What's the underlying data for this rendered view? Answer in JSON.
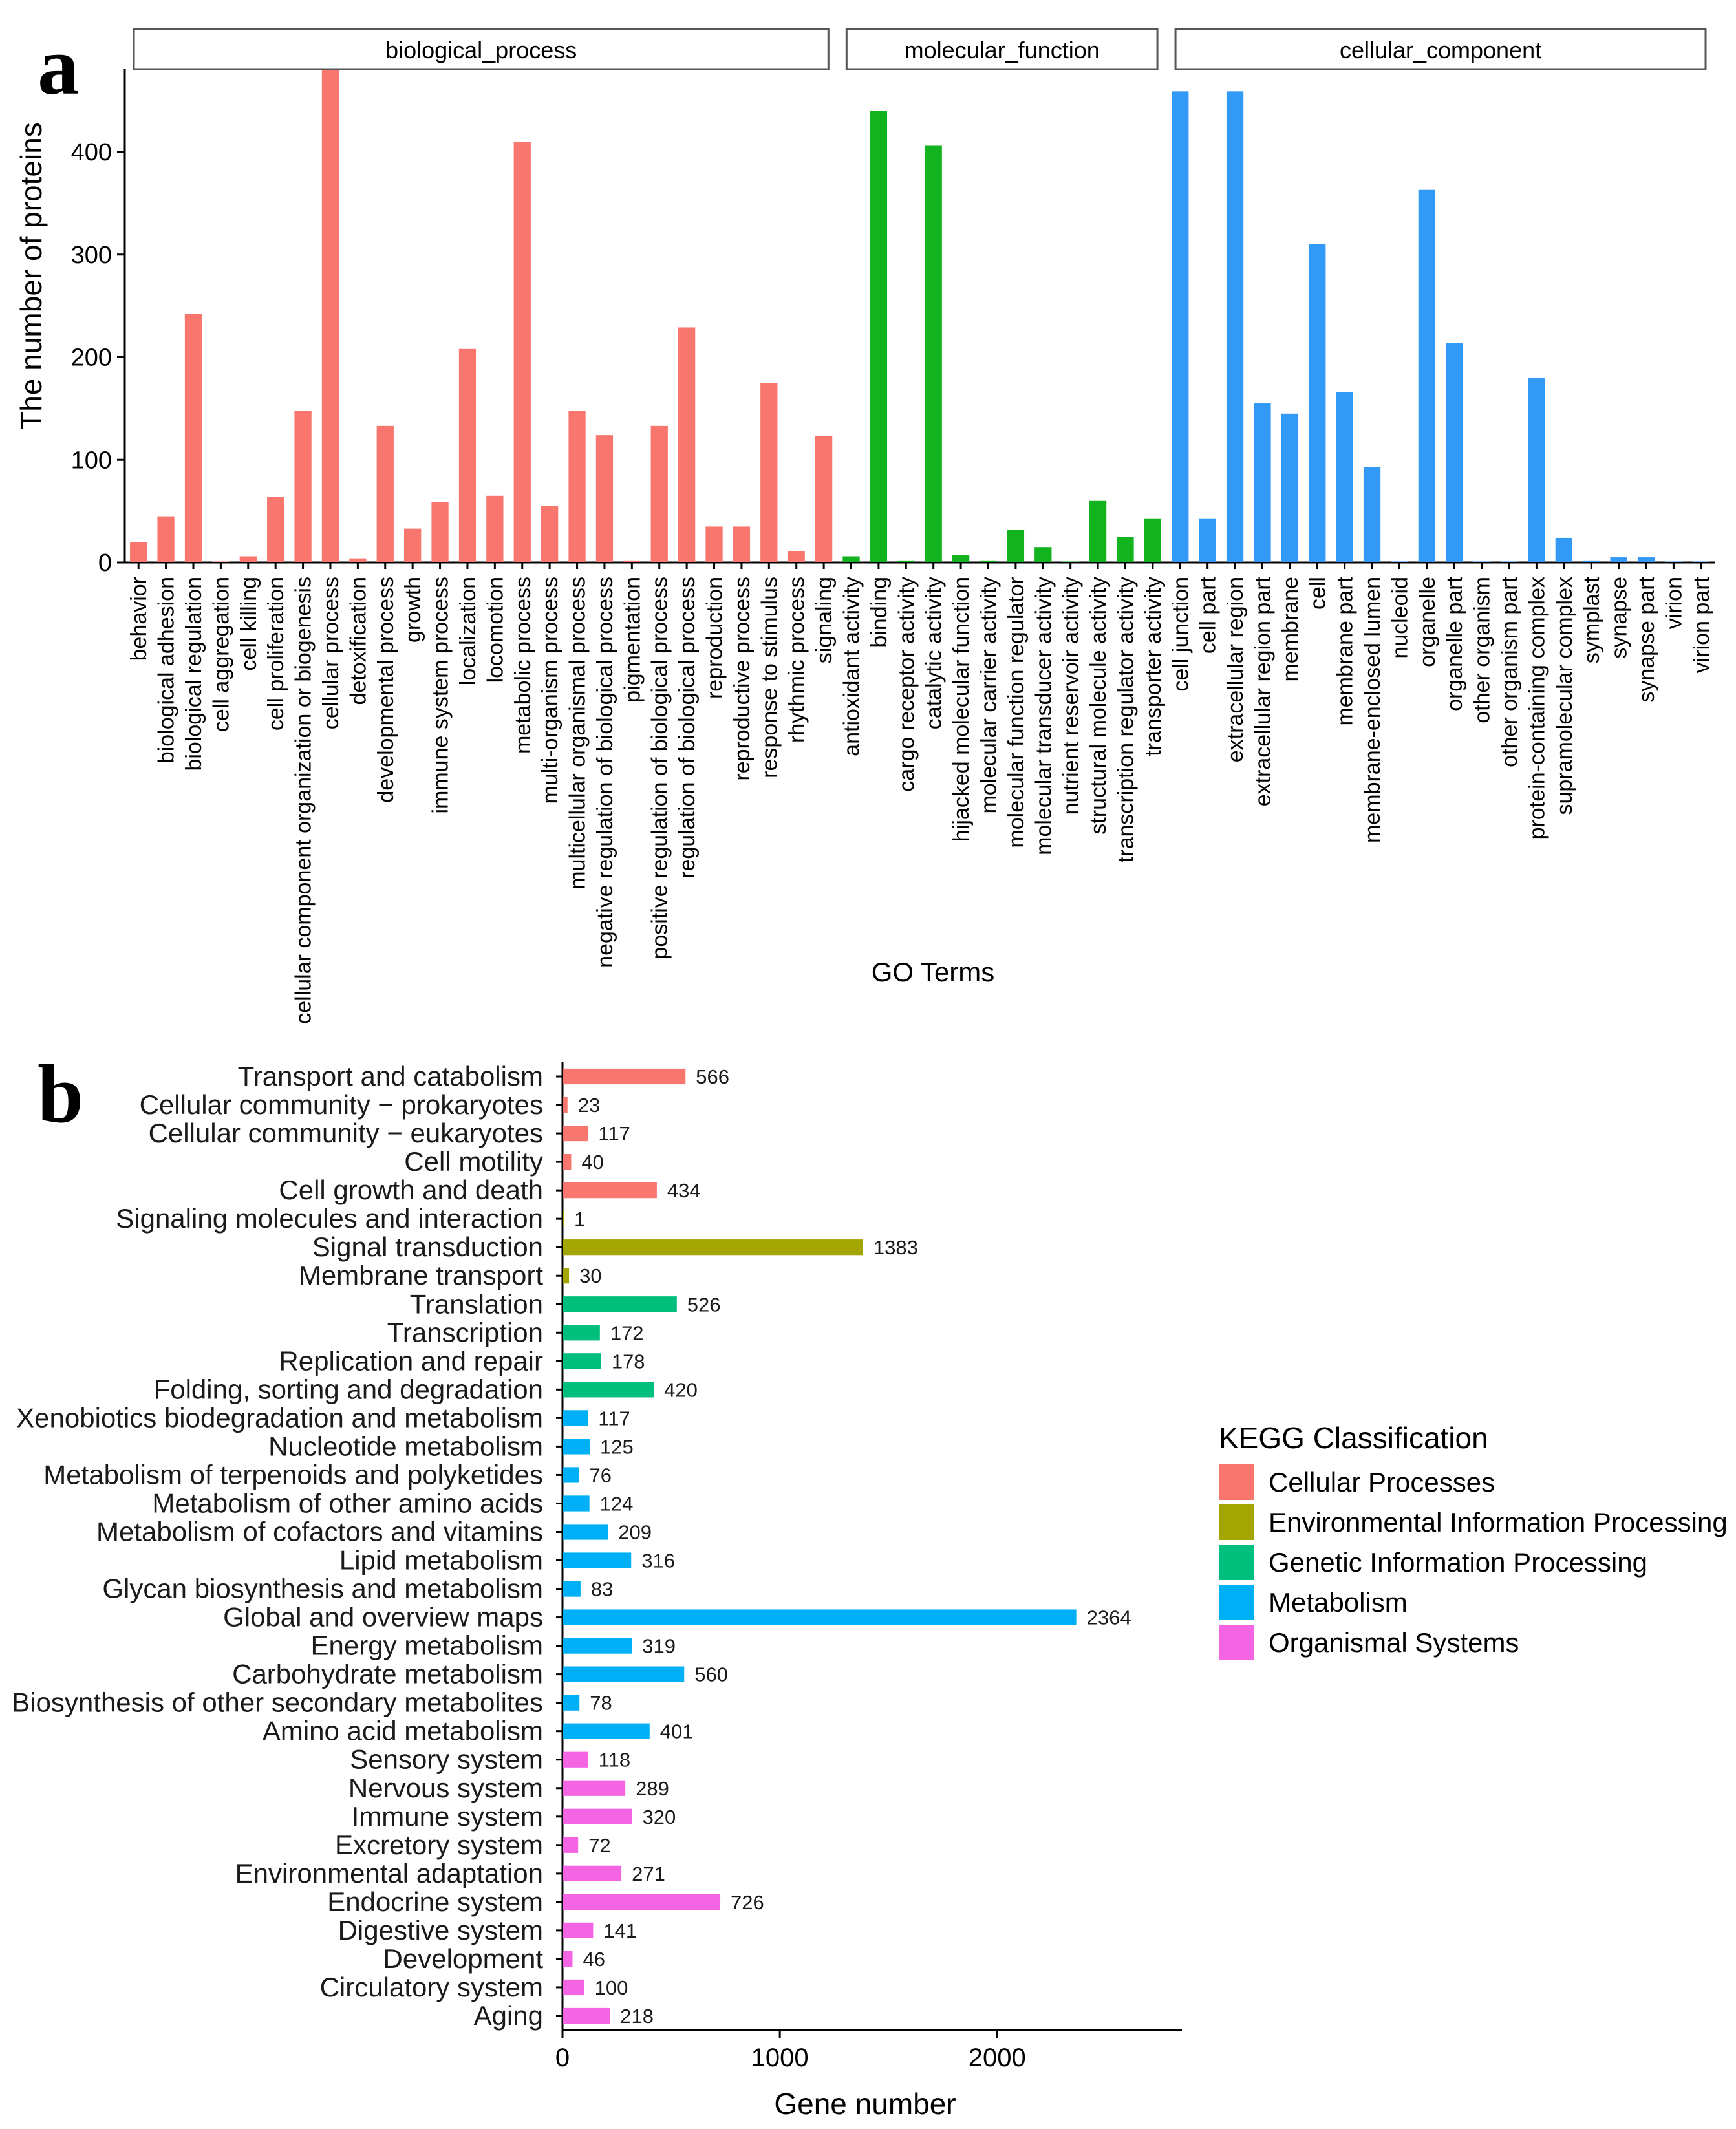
{
  "chart_data": [
    {
      "type": "bar",
      "panel_label": "a",
      "xlabel": "GO Terms",
      "ylabel": "The number of proteins",
      "ylim": [
        0,
        480
      ],
      "yticks": [
        0,
        100,
        200,
        300,
        400
      ],
      "grid": false,
      "groups": [
        {
          "name": "biological_process",
          "color": "#F8766D",
          "categories": [
            "behavior",
            "biological adhesion",
            "biological regulation",
            "cell aggregation",
            "cell killing",
            "cell proliferation",
            "cellular component organization or biogenesis",
            "cellular process",
            "detoxification",
            "developmental process",
            "growth",
            "immune system process",
            "localization",
            "locomotion",
            "metabolic process",
            "multi-organism process",
            "multicellular organismal process",
            "negative regulation of biological process",
            "pigmentation",
            "positive regulation of biological process",
            "regulation of biological process",
            "reproduction",
            "reproductive process",
            "response to stimulus",
            "rhythmic process",
            "signaling"
          ],
          "values": [
            20,
            45,
            242,
            1,
            6,
            64,
            148,
            480,
            4,
            133,
            33,
            59,
            208,
            65,
            410,
            55,
            148,
            124,
            2,
            133,
            229,
            35,
            35,
            175,
            11,
            123
          ]
        },
        {
          "name": "molecular_function",
          "color": "#12B31E",
          "categories": [
            "antioxidant activity",
            "binding",
            "cargo receptor activity",
            "catalytic activity",
            "hijacked molecular function",
            "molecular carrier activity",
            "molecular function regulator",
            "molecular transducer activity",
            "nutrient reservoir activity",
            "structural molecule activity",
            "transcription regulator activity",
            "transporter activity"
          ],
          "values": [
            6,
            440,
            2,
            406,
            7,
            2,
            32,
            15,
            1,
            60,
            25,
            43
          ]
        },
        {
          "name": "cellular_component",
          "color": "#3399F7",
          "categories": [
            "cell junction",
            "cell part",
            "extracellular region",
            "extracellular region part",
            "membrane",
            "cell",
            "membrane part",
            "membrane-enclosed lumen",
            "nucleoid",
            "organelle",
            "organelle part",
            "other organism",
            "other organism part",
            "protein-containing complex",
            "supramolecular complex",
            "symplast",
            "synapse",
            "synapse part",
            "virion",
            "virion part"
          ],
          "values": [
            459,
            43,
            459,
            155,
            145,
            310,
            166,
            93,
            1,
            363,
            214,
            1,
            1,
            180,
            24,
            2,
            5,
            5,
            1,
            1
          ]
        }
      ]
    },
    {
      "type": "bar",
      "orientation": "horizontal",
      "panel_label": "b",
      "xlabel": "Gene number",
      "xlim": [
        0,
        2850
      ],
      "xticks": [
        0,
        1000,
        2000
      ],
      "legend": {
        "title": "KEGG Classification",
        "position": "right",
        "items": [
          {
            "label": "Cellular Processes",
            "color": "#F8766D"
          },
          {
            "label": "Environmental Information Processing",
            "color": "#A3A500"
          },
          {
            "label": "Genetic Information Processing",
            "color": "#00BF7D"
          },
          {
            "label": "Metabolism",
            "color": "#00B0F6"
          },
          {
            "label": "Organismal Systems",
            "color": "#F564E3"
          }
        ]
      },
      "rows": [
        {
          "label": "Transport and catabolism",
          "value": 566,
          "class": 0
        },
        {
          "label": "Cellular community − prokaryotes",
          "value": 23,
          "class": 0
        },
        {
          "label": "Cellular community − eukaryotes",
          "value": 117,
          "class": 0
        },
        {
          "label": "Cell motility",
          "value": 40,
          "class": 0
        },
        {
          "label": "Cell growth and death",
          "value": 434,
          "class": 0
        },
        {
          "label": "Signaling molecules and interaction",
          "value": 1,
          "class": 1
        },
        {
          "label": "Signal transduction",
          "value": 1383,
          "class": 1
        },
        {
          "label": "Membrane transport",
          "value": 30,
          "class": 1
        },
        {
          "label": "Translation",
          "value": 526,
          "class": 2
        },
        {
          "label": "Transcription",
          "value": 172,
          "class": 2
        },
        {
          "label": "Replication and repair",
          "value": 178,
          "class": 2
        },
        {
          "label": "Folding, sorting and degradation",
          "value": 420,
          "class": 2
        },
        {
          "label": "Xenobiotics biodegradation and metabolism",
          "value": 117,
          "class": 3
        },
        {
          "label": "Nucleotide metabolism",
          "value": 125,
          "class": 3
        },
        {
          "label": "Metabolism of terpenoids and polyketides",
          "value": 76,
          "class": 3
        },
        {
          "label": "Metabolism of other amino acids",
          "value": 124,
          "class": 3
        },
        {
          "label": "Metabolism of cofactors and vitamins",
          "value": 209,
          "class": 3
        },
        {
          "label": "Lipid metabolism",
          "value": 316,
          "class": 3
        },
        {
          "label": "Glycan biosynthesis and metabolism",
          "value": 83,
          "class": 3
        },
        {
          "label": "Global and overview maps",
          "value": 2364,
          "class": 3
        },
        {
          "label": "Energy metabolism",
          "value": 319,
          "class": 3
        },
        {
          "label": "Carbohydrate metabolism",
          "value": 560,
          "class": 3
        },
        {
          "label": "Biosynthesis of other secondary metabolites",
          "value": 78,
          "class": 3
        },
        {
          "label": "Amino acid metabolism",
          "value": 401,
          "class": 3
        },
        {
          "label": "Sensory system",
          "value": 118,
          "class": 4
        },
        {
          "label": "Nervous system",
          "value": 289,
          "class": 4
        },
        {
          "label": "Immune system",
          "value": 320,
          "class": 4
        },
        {
          "label": "Excretory system",
          "value": 72,
          "class": 4
        },
        {
          "label": "Environmental adaptation",
          "value": 271,
          "class": 4
        },
        {
          "label": "Endocrine system",
          "value": 726,
          "class": 4
        },
        {
          "label": "Digestive system",
          "value": 141,
          "class": 4
        },
        {
          "label": "Development",
          "value": 46,
          "class": 4
        },
        {
          "label": "Circulatory system",
          "value": 100,
          "class": 4
        },
        {
          "label": "Aging",
          "value": 218,
          "class": 4
        }
      ]
    }
  ]
}
